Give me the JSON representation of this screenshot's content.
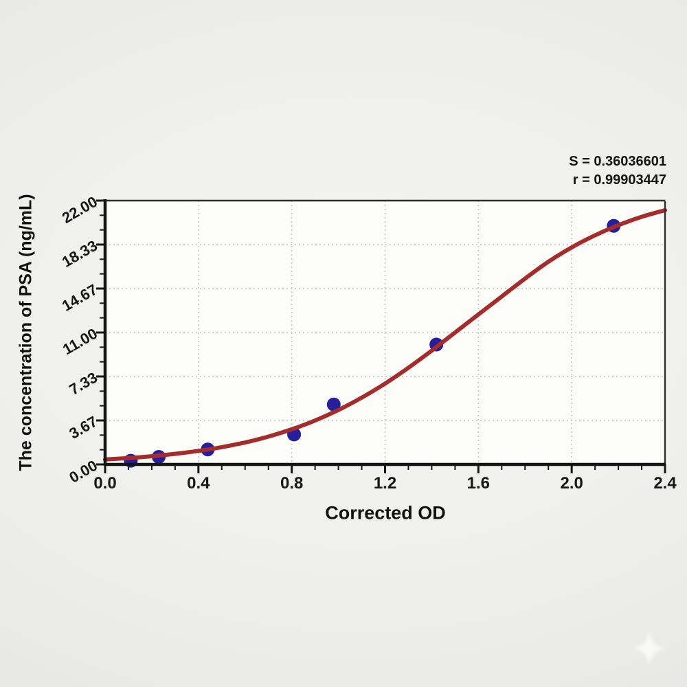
{
  "page": {
    "background_color": "#efefec",
    "plot_background": "#fcfcf9"
  },
  "annotation": {
    "s_line": "S = 0.36036601",
    "r_line": "r = 0.99903447"
  },
  "watermark": {
    "icon": "sparkle-star",
    "color": "#ffffff"
  },
  "chart_data": {
    "type": "scatter",
    "title": "",
    "xlabel": "Corrected OD",
    "ylabel": "The concentration of PSA (ng/mL)",
    "xlim": [
      0.0,
      2.4
    ],
    "ylim": [
      0.0,
      22.0
    ],
    "grid": true,
    "legend": null,
    "stats": {
      "S": "0.36036601",
      "r": "0.99903447"
    },
    "x_ticks": {
      "values": [
        0.0,
        0.4,
        0.8,
        1.2,
        1.6,
        2.0,
        2.4
      ],
      "labels": [
        "0.0",
        "0.4",
        "0.8",
        "1.2",
        "1.6",
        "2.0",
        "2.4"
      ],
      "minor_step": 0.1
    },
    "y_ticks": {
      "values": [
        0.0,
        3.667,
        7.333,
        11.0,
        14.667,
        18.333,
        22.0
      ],
      "labels": [
        "0.00",
        "3.67",
        "7.33",
        "11.00",
        "14.67",
        "18.33",
        "22.00"
      ],
      "minor_per_major": 2
    },
    "colors": {
      "curve": "#a42c2c",
      "points": "#251f9e",
      "grid": "#c7c7c5",
      "axis": "#161616"
    },
    "series": [
      {
        "name": "standard-points",
        "style": "scatter",
        "color": "#251f9e",
        "points": [
          {
            "x": 0.11,
            "y": 0.31
          },
          {
            "x": 0.23,
            "y": 0.63
          },
          {
            "x": 0.44,
            "y": 1.25
          },
          {
            "x": 0.81,
            "y": 2.5
          },
          {
            "x": 0.98,
            "y": 5.0
          },
          {
            "x": 1.42,
            "y": 10.0
          },
          {
            "x": 2.18,
            "y": 19.9
          }
        ]
      },
      {
        "name": "fitted-standard-curve",
        "style": "line",
        "color": "#a42c2c",
        "x": [
          0.0,
          0.1,
          0.2,
          0.3,
          0.4,
          0.5,
          0.6,
          0.7,
          0.8,
          0.9,
          1.0,
          1.1,
          1.2,
          1.3,
          1.4,
          1.5,
          1.6,
          1.7,
          1.8,
          1.9,
          2.0,
          2.1,
          2.2,
          2.3,
          2.4
        ],
        "y": [
          0.41,
          0.53,
          0.68,
          0.88,
          1.13,
          1.44,
          1.83,
          2.32,
          2.93,
          3.66,
          4.54,
          5.57,
          6.74,
          8.06,
          9.49,
          11.0,
          12.5,
          14.0,
          15.5,
          16.9,
          18.1,
          19.1,
          19.95,
          20.65,
          21.2
        ]
      }
    ]
  }
}
